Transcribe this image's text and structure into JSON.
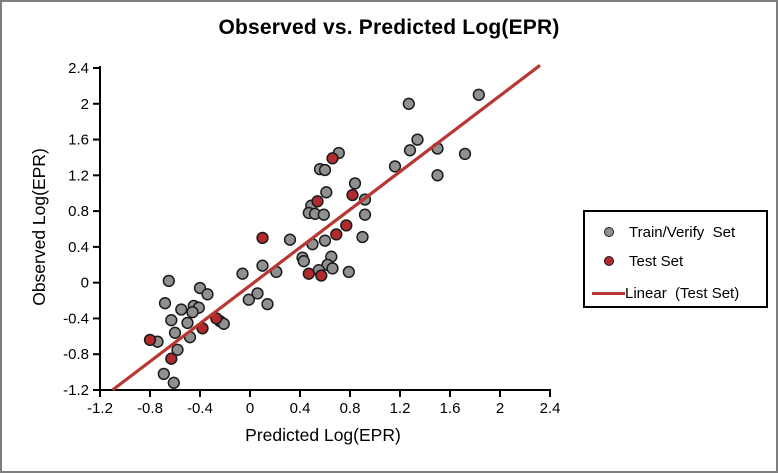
{
  "window": {
    "background": "#ffffff",
    "border_color": "#7e7e7e"
  },
  "chart_data": {
    "type": "scatter",
    "title": "Observed vs. Predicted Log(EPR)",
    "xlabel": "Predicted Log(EPR)",
    "ylabel": "Observed Log(EPR)",
    "xlim": [
      -1.2,
      2.4
    ],
    "ylim": [
      -1.2,
      2.4
    ],
    "grid": false,
    "axis_color": "#000000",
    "tick_label_color": "#000000",
    "x_tick_values": [
      -1.2,
      -0.8,
      -0.4,
      0,
      0.4,
      0.8,
      1.2,
      1.6,
      2,
      2.4
    ],
    "x_tick_labels": [
      "-1.2",
      "-0.8",
      "-0.4",
      "0",
      "0.4",
      "0.8",
      "1.2",
      "1.6",
      "2",
      "2.4"
    ],
    "y_tick_values": [
      2.4,
      2,
      1.6,
      1.2,
      0.8,
      0.4,
      0,
      -0.4,
      -0.8,
      -1.2
    ],
    "y_tick_labels": [
      "2.4",
      "2",
      "1.6",
      "1.2",
      "0.8",
      "0.4",
      "0",
      "-0.4",
      "-0.8",
      "-1.2"
    ],
    "series": [
      {
        "name": "Train/Verify  Set",
        "kind": "scatter",
        "marker": "circle",
        "marker_fill": "#909090",
        "marker_stroke": "#1a1a1a",
        "points": [
          [
            -0.65,
            0.02
          ],
          [
            -0.68,
            -0.23
          ],
          [
            -0.4,
            -0.06
          ],
          [
            -0.34,
            -0.13
          ],
          [
            -0.45,
            -0.26
          ],
          [
            -0.41,
            -0.28
          ],
          [
            -0.46,
            -0.33
          ],
          [
            -0.55,
            -0.3
          ],
          [
            -0.63,
            -0.42
          ],
          [
            -0.5,
            -0.45
          ],
          [
            -0.6,
            -0.56
          ],
          [
            -0.48,
            -0.61
          ],
          [
            -0.74,
            -0.66
          ],
          [
            -0.58,
            -0.75
          ],
          [
            -0.69,
            -1.02
          ],
          [
            -0.61,
            -1.12
          ],
          [
            -0.24,
            -0.43
          ],
          [
            -0.21,
            -0.46
          ],
          [
            -0.01,
            -0.19
          ],
          [
            0.06,
            -0.12
          ],
          [
            0.14,
            -0.24
          ],
          [
            -0.06,
            0.1
          ],
          [
            0.1,
            0.19
          ],
          [
            0.21,
            0.12
          ],
          [
            0.32,
            0.48
          ],
          [
            0.5,
            0.43
          ],
          [
            0.6,
            0.47
          ],
          [
            0.42,
            0.28
          ],
          [
            0.43,
            0.24
          ],
          [
            0.65,
            0.29
          ],
          [
            0.62,
            0.2
          ],
          [
            0.66,
            0.16
          ],
          [
            0.55,
            0.14
          ],
          [
            0.79,
            0.12
          ],
          [
            0.9,
            0.51
          ],
          [
            0.49,
            0.86
          ],
          [
            0.47,
            0.78
          ],
          [
            0.52,
            0.77
          ],
          [
            0.59,
            0.76
          ],
          [
            0.61,
            1.01
          ],
          [
            0.84,
            1.11
          ],
          [
            0.92,
            0.76
          ],
          [
            0.92,
            0.93
          ],
          [
            0.56,
            1.27
          ],
          [
            0.6,
            1.26
          ],
          [
            0.71,
            1.45
          ],
          [
            1.16,
            1.3
          ],
          [
            1.27,
            2.0
          ],
          [
            1.28,
            1.48
          ],
          [
            1.34,
            1.6
          ],
          [
            1.5,
            1.5
          ],
          [
            1.5,
            1.2
          ],
          [
            1.72,
            1.44
          ],
          [
            1.83,
            2.1
          ]
        ]
      },
      {
        "name": "Test Set",
        "kind": "scatter",
        "marker": "circle",
        "marker_fill": "#b02a2e",
        "marker_stroke": "#1a1a1a",
        "points": [
          [
            -0.8,
            -0.64
          ],
          [
            -0.63,
            -0.85
          ],
          [
            -0.38,
            -0.51
          ],
          [
            -0.27,
            -0.4
          ],
          [
            0.1,
            0.5
          ],
          [
            0.47,
            0.1
          ],
          [
            0.57,
            0.08
          ],
          [
            0.54,
            0.91
          ],
          [
            0.69,
            0.54
          ],
          [
            0.77,
            0.64
          ],
          [
            0.82,
            0.98
          ],
          [
            0.66,
            1.39
          ]
        ]
      },
      {
        "name": "Linear  (Test Set)",
        "kind": "line",
        "color": "#b93733",
        "points": [
          [
            -1.1,
            -1.2
          ],
          [
            2.32,
            2.43
          ]
        ]
      }
    ],
    "legend": {
      "position": "right",
      "items": [
        {
          "label": "Train/Verify  Set",
          "marker": "circle",
          "color": "#909090"
        },
        {
          "label": "Test Set",
          "marker": "circle",
          "color": "#b02a2e"
        },
        {
          "label": "Linear  (Test Set)",
          "marker": "line",
          "color": "#b93733"
        }
      ]
    }
  }
}
